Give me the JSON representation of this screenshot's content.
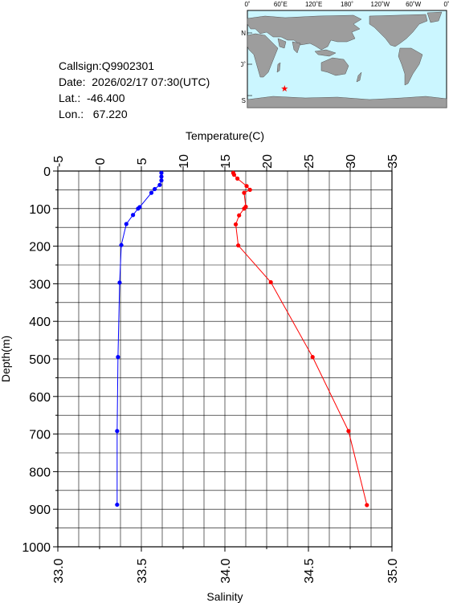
{
  "station": {
    "callsign": "Callsign:Q9902301",
    "date": "Date:  2026/02/17 07:30(UTC)",
    "lat": "Lat.:  -46.400",
    "lon": "Lon.:   67.220"
  },
  "map": {
    "top_labels": [
      "0˚",
      "60˚E",
      "120˚E",
      "180˚",
      "120˚W",
      "60˚W",
      "0˚"
    ],
    "side_labels": [
      "60˚N",
      "0˚",
      "60˚S"
    ],
    "ocean_color": "#cbf6ff",
    "land_color": "#9d9d9d",
    "marker": {
      "lon": 67.22,
      "lat": -46.4,
      "symbol": "★",
      "color": "#ff0000"
    }
  },
  "chart_data": {
    "type": "line",
    "ylabel": "Depth(m)",
    "ylim": [
      0,
      1000
    ],
    "y_ticks": [
      "0",
      "100",
      "200",
      "300",
      "400",
      "500",
      "600",
      "700",
      "800",
      "900",
      "1000"
    ],
    "x_top": {
      "label": "Temperature(C)",
      "range": [
        -5,
        35
      ],
      "ticks": [
        "-5",
        "0",
        "5",
        "10",
        "15",
        "20",
        "25",
        "30",
        "35"
      ]
    },
    "x_bottom": {
      "label": "Salinity",
      "range": [
        33.0,
        35.0
      ],
      "ticks": [
        "33.0",
        "33.5",
        "34.0",
        "34.5",
        "35.0"
      ]
    },
    "grid": true,
    "series": [
      {
        "axis": "temperature",
        "color": "#ff0000",
        "points": [
          {
            "x": 16.0,
            "depth": 5
          },
          {
            "x": 16.1,
            "depth": 10
          },
          {
            "x": 16.5,
            "depth": 20
          },
          {
            "x": 17.6,
            "depth": 40
          },
          {
            "x": 18.0,
            "depth": 50
          },
          {
            "x": 17.3,
            "depth": 58
          },
          {
            "x": 17.5,
            "depth": 95
          },
          {
            "x": 17.3,
            "depth": 100
          },
          {
            "x": 16.7,
            "depth": 118
          },
          {
            "x": 16.3,
            "depth": 142
          },
          {
            "x": 16.6,
            "depth": 198
          },
          {
            "x": 20.5,
            "depth": 296
          },
          {
            "x": 25.5,
            "depth": 495
          },
          {
            "x": 29.8,
            "depth": 692
          },
          {
            "x": 32.0,
            "depth": 889
          }
        ]
      },
      {
        "axis": "salinity",
        "color": "#0000ff",
        "points": [
          {
            "x": 33.62,
            "depth": 5
          },
          {
            "x": 33.62,
            "depth": 15
          },
          {
            "x": 33.62,
            "depth": 25
          },
          {
            "x": 33.61,
            "depth": 37
          },
          {
            "x": 33.58,
            "depth": 48
          },
          {
            "x": 33.56,
            "depth": 58
          },
          {
            "x": 33.49,
            "depth": 96
          },
          {
            "x": 33.48,
            "depth": 100
          },
          {
            "x": 33.45,
            "depth": 117
          },
          {
            "x": 33.41,
            "depth": 141
          },
          {
            "x": 33.38,
            "depth": 197
          },
          {
            "x": 33.37,
            "depth": 297
          },
          {
            "x": 33.36,
            "depth": 495
          },
          {
            "x": 33.355,
            "depth": 692
          },
          {
            "x": 33.355,
            "depth": 888
          }
        ]
      }
    ]
  }
}
